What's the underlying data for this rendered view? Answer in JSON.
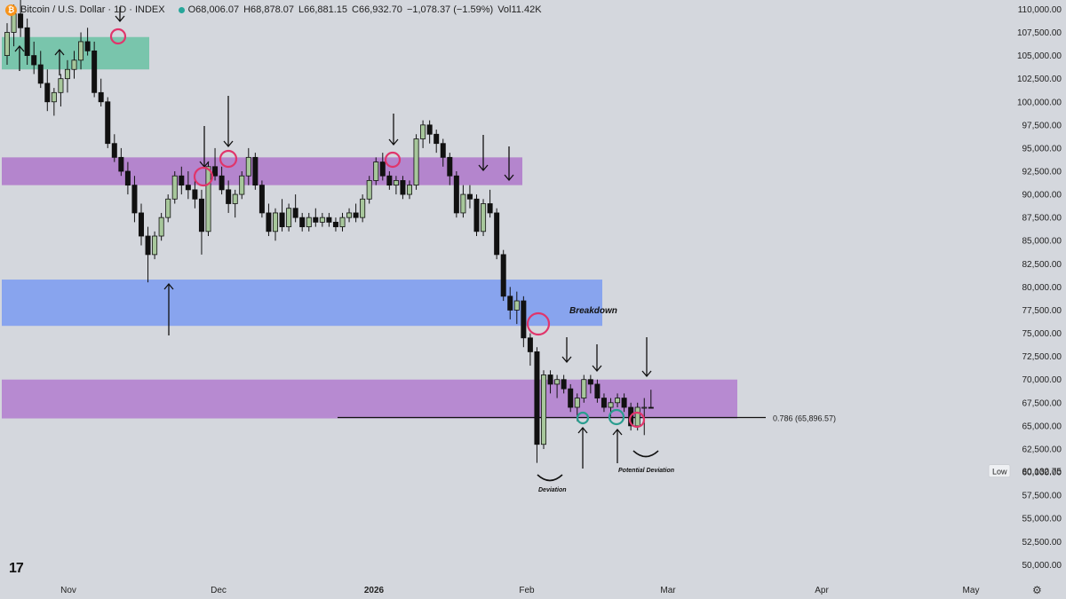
{
  "header": {
    "symbol": "Bitcoin / U.S. Dollar · 1D · INDEX",
    "open": "O68,006.07",
    "high": "H68,878.07",
    "low": "L66,881.15",
    "close": "C66,932.70",
    "change": "−1,078.37 (−1.59%)",
    "volume": "Vol11.42K"
  },
  "chart_data": {
    "type": "candlestick",
    "y_ticks": [
      "50,000.00",
      "52,500.00",
      "55,000.00",
      "57,500.00",
      "60,000.00",
      "62,500.00",
      "65,000.00",
      "67,500.00",
      "70,000.00",
      "72,500.00",
      "75,000.00",
      "77,500.00",
      "80,000.00",
      "82,500.00",
      "85,000.00",
      "87,500.00",
      "90,000.00",
      "92,500.00",
      "95,000.00",
      "97,500.00",
      "100,000.00",
      "102,500.00",
      "105,000.00",
      "107,500.00",
      "110,000.00"
    ],
    "y_range": [
      48500,
      111000
    ],
    "x_labels": [
      "Nov",
      "Dec",
      "2026",
      "Feb",
      "Mar",
      "Apr",
      "May"
    ],
    "low_badge": {
      "label": "Low",
      "value": "60,132.75"
    },
    "fib_line": {
      "label": "0.786 (65,896.57)",
      "price": 65896.57
    },
    "annotations": [
      "Breakdown",
      "Deviation",
      "Potential Deviation"
    ],
    "zones": [
      {
        "name": "support-zone-green",
        "from": 103500,
        "to": 107000,
        "color": "#6fc3a6"
      },
      {
        "name": "resistance-zone-upper",
        "from": 91000,
        "to": 94000,
        "color": "#b07ccb"
      },
      {
        "name": "breakdown-zone",
        "from": 75800,
        "to": 80800,
        "color": "#7f9ef0"
      },
      {
        "name": "range-zone-lower",
        "from": 65800,
        "to": 70000,
        "color": "#b482cf"
      }
    ],
    "candles": [
      [
        105000,
        108500,
        104000,
        107500
      ],
      [
        107500,
        110500,
        106000,
        109500
      ],
      [
        109500,
        111000,
        107000,
        108000
      ],
      [
        108000,
        109000,
        104000,
        105000
      ],
      [
        105000,
        106500,
        103000,
        104000
      ],
      [
        104000,
        105500,
        101500,
        102000
      ],
      [
        102000,
        103500,
        99000,
        100000
      ],
      [
        100000,
        101500,
        98500,
        101000
      ],
      [
        101000,
        103000,
        99500,
        102500
      ],
      [
        102500,
        104500,
        101000,
        103500
      ],
      [
        103500,
        105500,
        102500,
        104500
      ],
      [
        104500,
        107500,
        103500,
        106500
      ],
      [
        106500,
        108000,
        105000,
        105500
      ],
      [
        105500,
        106500,
        100500,
        101000
      ],
      [
        101000,
        102500,
        99500,
        100000
      ],
      [
        100000,
        100500,
        95000,
        95500
      ],
      [
        95500,
        96500,
        93500,
        94000
      ],
      [
        94000,
        95000,
        92000,
        92500
      ],
      [
        92500,
        93500,
        90000,
        91000
      ],
      [
        91000,
        92000,
        87000,
        88000
      ],
      [
        88000,
        89000,
        84500,
        85500
      ],
      [
        85500,
        86500,
        80500,
        83500
      ],
      [
        83500,
        86000,
        83000,
        85500
      ],
      [
        85500,
        88000,
        85000,
        87500
      ],
      [
        87500,
        90000,
        87000,
        89500
      ],
      [
        89500,
        92500,
        89000,
        92000
      ],
      [
        92000,
        93000,
        90000,
        91000
      ],
      [
        91000,
        92500,
        89500,
        90500
      ],
      [
        90500,
        91500,
        88500,
        89500
      ],
      [
        89500,
        90500,
        83500,
        86000
      ],
      [
        86000,
        93500,
        85500,
        93000
      ],
      [
        93000,
        95000,
        91500,
        92000
      ],
      [
        92000,
        93000,
        90000,
        90500
      ],
      [
        90500,
        91500,
        88000,
        89000
      ],
      [
        89000,
        90500,
        87500,
        90000
      ],
      [
        90000,
        92500,
        89500,
        92000
      ],
      [
        92000,
        95000,
        91000,
        94000
      ],
      [
        94000,
        94500,
        90500,
        91000
      ],
      [
        91000,
        91500,
        87500,
        88000
      ],
      [
        88000,
        89000,
        85500,
        86000
      ],
      [
        86000,
        88500,
        85000,
        88000
      ],
      [
        88000,
        89500,
        86000,
        86500
      ],
      [
        86500,
        89000,
        86000,
        88500
      ],
      [
        88500,
        90000,
        87000,
        87500
      ],
      [
        87500,
        88000,
        86000,
        86500
      ],
      [
        86500,
        88000,
        86000,
        87500
      ],
      [
        87500,
        88500,
        86500,
        87000
      ],
      [
        87000,
        88000,
        86500,
        87500
      ],
      [
        87500,
        88000,
        86500,
        87000
      ],
      [
        87000,
        87500,
        86000,
        86500
      ],
      [
        86500,
        88000,
        86000,
        87500
      ],
      [
        87500,
        88500,
        87000,
        88000
      ],
      [
        88000,
        89000,
        87000,
        87500
      ],
      [
        87500,
        90000,
        87000,
        89500
      ],
      [
        89500,
        92000,
        89000,
        91500
      ],
      [
        91500,
        94000,
        91000,
        93500
      ],
      [
        93500,
        94500,
        91500,
        92000
      ],
      [
        92000,
        92500,
        90500,
        91000
      ],
      [
        91000,
        92000,
        90000,
        91500
      ],
      [
        91500,
        92000,
        89500,
        90000
      ],
      [
        90000,
        91500,
        89500,
        91000
      ],
      [
        91000,
        96500,
        90500,
        96000
      ],
      [
        96000,
        98000,
        95000,
        97500
      ],
      [
        97500,
        98000,
        95500,
        96500
      ],
      [
        96500,
        97000,
        94500,
        95500
      ],
      [
        95500,
        96000,
        93000,
        94000
      ],
      [
        94000,
        94500,
        91000,
        92000
      ],
      [
        92000,
        92500,
        87500,
        88000
      ],
      [
        88000,
        91000,
        87500,
        90000
      ],
      [
        90000,
        91000,
        88500,
        89500
      ],
      [
        89500,
        90000,
        85500,
        86000
      ],
      [
        86000,
        89500,
        85500,
        89000
      ],
      [
        89000,
        90500,
        87500,
        88000
      ],
      [
        88000,
        88500,
        83000,
        83500
      ],
      [
        83500,
        84000,
        78500,
        79000
      ],
      [
        79000,
        80000,
        76500,
        77500
      ],
      [
        77500,
        79500,
        76000,
        78500
      ],
      [
        78500,
        79000,
        73500,
        74500
      ],
      [
        74500,
        75000,
        71500,
        73000
      ],
      [
        73000,
        73500,
        61000,
        63000
      ],
      [
        63000,
        71000,
        62500,
        70500
      ],
      [
        70500,
        71000,
        68500,
        69500
      ],
      [
        69500,
        70500,
        68000,
        70000
      ],
      [
        70000,
        70500,
        68500,
        69000
      ],
      [
        69000,
        69500,
        66500,
        67000
      ],
      [
        67000,
        68500,
        65500,
        68000
      ],
      [
        68000,
        70500,
        67500,
        70000
      ],
      [
        70000,
        70500,
        68500,
        69500
      ],
      [
        69500,
        70000,
        67500,
        68000
      ],
      [
        68000,
        68500,
        66500,
        67000
      ],
      [
        67000,
        68000,
        66000,
        67500
      ],
      [
        67500,
        68500,
        67000,
        68000
      ],
      [
        68000,
        68500,
        66500,
        67000
      ],
      [
        67000,
        67500,
        64500,
        65000
      ],
      [
        65000,
        67500,
        64500,
        67000
      ],
      [
        67000,
        68000,
        64000,
        67000
      ],
      [
        67000,
        68900,
        66900,
        66900
      ]
    ]
  }
}
